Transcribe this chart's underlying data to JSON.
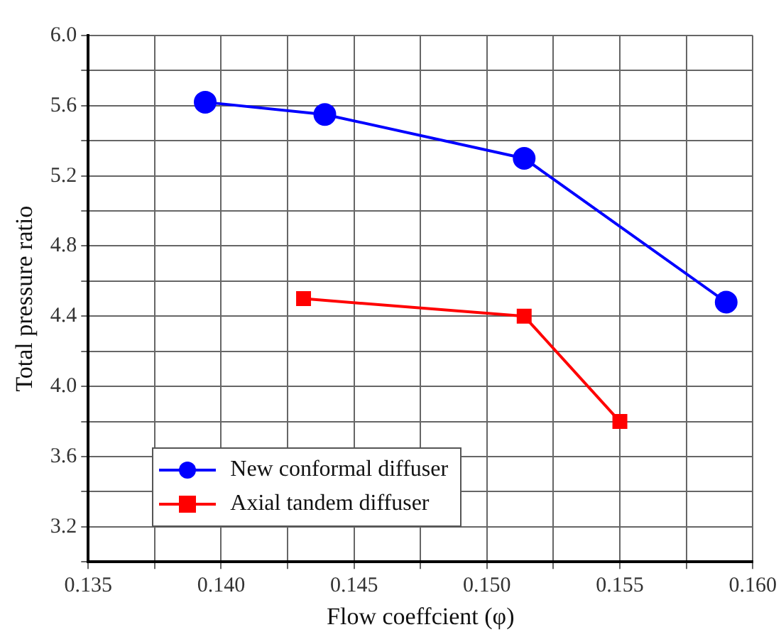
{
  "chart_data": {
    "type": "line",
    "xlabel": "Flow coeffcient (φ)",
    "ylabel": "Total pressure ratio",
    "series": [
      {
        "name": "New conformal diffuser",
        "color": "#0000ff",
        "marker": "circle",
        "x": [
          0.1394,
          0.1439,
          0.1514,
          0.159
        ],
        "values": [
          5.62,
          5.55,
          5.3,
          4.48
        ]
      },
      {
        "name": "Axial tandem diffuser",
        "color": "#ff0000",
        "marker": "square",
        "x": [
          0.1431,
          0.1514,
          0.155
        ],
        "values": [
          4.5,
          4.4,
          3.8
        ]
      }
    ],
    "xlim": [
      0.135,
      0.16
    ],
    "xticks": [
      0.135,
      {
        "value": 0.1375,
        "label": null
      },
      {
        "value": 0.14,
        "label": "0.140"
      },
      {
        "value": 0.1425,
        "label": null
      },
      0.145,
      {
        "value": 0.1475,
        "label": null
      },
      {
        "value": 0.15,
        "label": "0.150"
      },
      {
        "value": 0.1525,
        "label": null
      },
      0.155,
      {
        "value": 0.1575,
        "label": null
      },
      {
        "value": 0.16,
        "label": "0.160"
      }
    ],
    "ylim": [
      3.0,
      6.0
    ],
    "yticks": [
      {
        "value": 3.0,
        "label": null
      },
      3.2,
      {
        "value": 3.4,
        "label": null
      },
      3.6,
      {
        "value": 3.8,
        "label": null
      },
      {
        "value": 4.0,
        "label": "4.0"
      },
      {
        "value": 4.2,
        "label": null
      },
      4.4,
      {
        "value": 4.6,
        "label": null
      },
      4.8,
      {
        "value": 5.0,
        "label": null
      },
      5.2,
      {
        "value": 5.4,
        "label": null
      },
      5.6,
      {
        "value": 5.8,
        "label": null
      },
      {
        "value": 6.0,
        "label": "6.0"
      }
    ],
    "grid": true,
    "legend": "bottom left",
    "line_style": "solid"
  }
}
